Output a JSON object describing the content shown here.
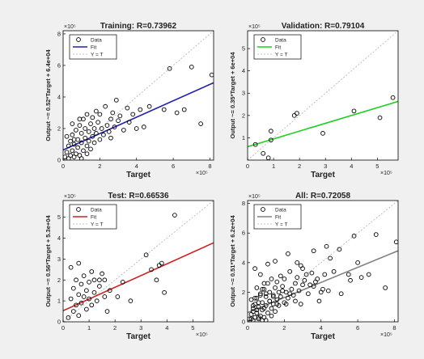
{
  "figure": {
    "background": "#f0f0f0",
    "axes_background": "#ffffff",
    "marker_style": "open-circle",
    "identity_line_color": "#b0b0b0"
  },
  "chart_data": [
    {
      "type": "scatter",
      "title": "Training: R=0.73962",
      "xlabel": "Target",
      "ylabel": "Output ~= 0.52*Target + 6.4e+04",
      "x_exponent": "×10⁵",
      "y_exponent": "×10⁵",
      "xlim": [
        0,
        8.2
      ],
      "ylim": [
        0,
        8.2
      ],
      "xticks": [
        0,
        2,
        4,
        6,
        8
      ],
      "yticks": [
        0,
        2,
        4,
        6,
        8
      ],
      "legend": {
        "placement": "top-left",
        "entries": [
          "Data",
          "Fit",
          "Y = T"
        ]
      },
      "fit": {
        "slope": 0.52,
        "intercept": 0.64,
        "color": "#2020b0"
      },
      "points": [
        [
          0.1,
          0.2
        ],
        [
          0.2,
          0.5
        ],
        [
          0.3,
          0.1
        ],
        [
          0.3,
          0.9
        ],
        [
          0.4,
          0.3
        ],
        [
          0.4,
          1.2
        ],
        [
          0.5,
          0.6
        ],
        [
          0.5,
          1.6
        ],
        [
          0.6,
          0.2
        ],
        [
          0.6,
          1.0
        ],
        [
          0.7,
          0.4
        ],
        [
          0.7,
          1.9
        ],
        [
          0.8,
          0.8
        ],
        [
          0.8,
          1.3
        ],
        [
          0.9,
          2.2
        ],
        [
          0.9,
          0.3
        ],
        [
          1.0,
          1.1
        ],
        [
          1.0,
          1.7
        ],
        [
          1.1,
          0.6
        ],
        [
          1.1,
          2.6
        ],
        [
          1.2,
          1.4
        ],
        [
          1.2,
          2.0
        ],
        [
          1.3,
          0.9
        ],
        [
          1.3,
          2.9
        ],
        [
          1.4,
          1.8
        ],
        [
          1.4,
          1.2
        ],
        [
          1.5,
          2.3
        ],
        [
          1.5,
          0.7
        ],
        [
          1.6,
          1.5
        ],
        [
          1.6,
          2.7
        ],
        [
          1.7,
          2.0
        ],
        [
          1.7,
          1.1
        ],
        [
          1.8,
          3.1
        ],
        [
          1.8,
          1.7
        ],
        [
          1.9,
          2.4
        ],
        [
          2.0,
          1.3
        ],
        [
          2.0,
          2.9
        ],
        [
          2.1,
          2.0
        ],
        [
          2.2,
          1.6
        ],
        [
          2.3,
          3.4
        ],
        [
          2.4,
          2.2
        ],
        [
          2.5,
          1.8
        ],
        [
          2.6,
          2.6
        ],
        [
          2.7,
          3.0
        ],
        [
          2.8,
          2.1
        ],
        [
          2.9,
          3.8
        ],
        [
          3.0,
          2.5
        ],
        [
          3.1,
          2.8
        ],
        [
          3.3,
          1.9
        ],
        [
          3.5,
          3.3
        ],
        [
          3.6,
          2.4
        ],
        [
          3.8,
          2.9
        ],
        [
          4.0,
          2.0
        ],
        [
          4.2,
          3.2
        ],
        [
          4.4,
          2.1
        ],
        [
          4.7,
          3.4
        ],
        [
          5.5,
          3.2
        ],
        [
          5.8,
          5.8
        ],
        [
          6.2,
          3.0
        ],
        [
          6.6,
          3.2
        ],
        [
          7.0,
          5.9
        ],
        [
          7.5,
          2.3
        ],
        [
          8.1,
          5.4
        ],
        [
          0.5,
          2.3
        ],
        [
          0.9,
          2.6
        ],
        [
          1.0,
          0.1
        ],
        [
          0.2,
          1.5
        ],
        [
          0.6,
          1.3
        ],
        [
          1.3,
          0.4
        ],
        [
          2.6,
          1.4
        ]
      ]
    },
    {
      "type": "scatter",
      "title": "Validation: R=0.79104",
      "xlabel": "Target",
      "ylabel": "Output ~= 0.35*Target + 6e+04",
      "x_exponent": "×10⁵",
      "y_exponent": "×10⁵",
      "xlim": [
        0,
        5.8
      ],
      "ylim": [
        0,
        5.8
      ],
      "xticks": [
        0,
        1,
        2,
        3,
        4,
        5
      ],
      "yticks": [
        1,
        2,
        3,
        4,
        5
      ],
      "legend": {
        "placement": "top-left",
        "entries": [
          "Data",
          "Fit",
          "Y = T"
        ]
      },
      "fit": {
        "slope": 0.35,
        "intercept": 0.6,
        "color": "#20d020"
      },
      "points": [
        [
          0.3,
          0.7
        ],
        [
          0.6,
          0.3
        ],
        [
          0.8,
          0.1
        ],
        [
          0.9,
          0.9
        ],
        [
          0.9,
          1.3
        ],
        [
          1.8,
          2.0
        ],
        [
          1.9,
          2.1
        ],
        [
          2.9,
          1.2
        ],
        [
          4.1,
          2.2
        ],
        [
          5.1,
          1.9
        ],
        [
          5.6,
          2.8
        ]
      ]
    },
    {
      "type": "scatter",
      "title": "Test: R=0.66536",
      "xlabel": "Target",
      "ylabel": "Output ~= 0.56*Target + 5.3e+04",
      "x_exponent": "×10⁵",
      "y_exponent": "×10⁵",
      "xlim": [
        0,
        5.8
      ],
      "ylim": [
        0,
        5.8
      ],
      "xticks": [
        0,
        1,
        2,
        3,
        4,
        5
      ],
      "yticks": [
        0,
        1,
        2,
        3,
        4,
        5
      ],
      "legend": {
        "placement": "top-left",
        "entries": [
          "Data",
          "Fit",
          "Y = T"
        ]
      },
      "fit": {
        "slope": 0.56,
        "intercept": 0.53,
        "color": "#d02020"
      },
      "points": [
        [
          0.2,
          0.2
        ],
        [
          0.3,
          1.1
        ],
        [
          0.4,
          0.5
        ],
        [
          0.4,
          1.6
        ],
        [
          0.5,
          0.8
        ],
        [
          0.5,
          2.0
        ],
        [
          0.6,
          1.3
        ],
        [
          0.6,
          0.3
        ],
        [
          0.7,
          1.8
        ],
        [
          0.7,
          0.9
        ],
        [
          0.8,
          1.2
        ],
        [
          0.8,
          2.2
        ],
        [
          0.9,
          0.6
        ],
        [
          0.9,
          1.5
        ],
        [
          1.0,
          1.9
        ],
        [
          1.0,
          1.1
        ],
        [
          1.1,
          0.8
        ],
        [
          1.1,
          2.4
        ],
        [
          1.2,
          1.4
        ],
        [
          1.2,
          2.0
        ],
        [
          1.3,
          1.0
        ],
        [
          1.4,
          1.7
        ],
        [
          1.5,
          2.3
        ],
        [
          1.6,
          1.2
        ],
        [
          1.6,
          2.0
        ],
        [
          1.7,
          0.5
        ],
        [
          1.8,
          1.5
        ],
        [
          2.1,
          1.2
        ],
        [
          2.3,
          1.9
        ],
        [
          2.6,
          1.0
        ],
        [
          3.2,
          3.2
        ],
        [
          3.4,
          2.5
        ],
        [
          3.6,
          2.0
        ],
        [
          3.7,
          2.7
        ],
        [
          3.8,
          2.8
        ],
        [
          3.9,
          1.4
        ],
        [
          4.3,
          5.1
        ],
        [
          0.3,
          2.6
        ],
        [
          0.6,
          2.8
        ],
        [
          1.4,
          2.0
        ]
      ]
    },
    {
      "type": "scatter",
      "title": "All: R=0.72058",
      "xlabel": "Target",
      "ylabel": "Output ~= 0.51*Target + 6.2e+04",
      "x_exponent": "×10⁵",
      "y_exponent": "×10⁵",
      "xlim": [
        0,
        8.2
      ],
      "ylim": [
        0,
        8.2
      ],
      "xticks": [
        0,
        2,
        4,
        6,
        8
      ],
      "yticks": [
        0,
        2,
        4,
        6,
        8
      ],
      "legend": {
        "placement": "top-left",
        "entries": [
          "Data",
          "Fit",
          "Y = T"
        ]
      },
      "fit": {
        "slope": 0.51,
        "intercept": 0.62,
        "color": "#808080"
      },
      "points": [
        [
          0.1,
          0.2
        ],
        [
          0.2,
          0.5
        ],
        [
          0.3,
          0.1
        ],
        [
          0.3,
          0.9
        ],
        [
          0.4,
          0.3
        ],
        [
          0.4,
          1.2
        ],
        [
          0.5,
          0.6
        ],
        [
          0.5,
          1.6
        ],
        [
          0.6,
          0.2
        ],
        [
          0.6,
          1.0
        ],
        [
          0.7,
          0.4
        ],
        [
          0.7,
          1.9
        ],
        [
          0.8,
          0.8
        ],
        [
          0.8,
          1.3
        ],
        [
          0.9,
          2.2
        ],
        [
          0.9,
          0.3
        ],
        [
          1.0,
          1.1
        ],
        [
          1.0,
          1.7
        ],
        [
          1.1,
          0.6
        ],
        [
          1.1,
          2.6
        ],
        [
          1.2,
          1.4
        ],
        [
          1.2,
          2.0
        ],
        [
          1.3,
          0.9
        ],
        [
          1.3,
          2.9
        ],
        [
          1.4,
          1.8
        ],
        [
          1.4,
          1.2
        ],
        [
          1.5,
          2.3
        ],
        [
          1.5,
          0.7
        ],
        [
          1.6,
          1.5
        ],
        [
          1.6,
          2.7
        ],
        [
          1.7,
          2.0
        ],
        [
          1.7,
          1.1
        ],
        [
          1.8,
          3.1
        ],
        [
          1.8,
          1.7
        ],
        [
          1.9,
          2.4
        ],
        [
          2.0,
          1.3
        ],
        [
          2.0,
          2.9
        ],
        [
          2.1,
          2.0
        ],
        [
          2.2,
          1.6
        ],
        [
          2.3,
          3.4
        ],
        [
          2.4,
          2.2
        ],
        [
          2.5,
          1.8
        ],
        [
          2.6,
          2.6
        ],
        [
          2.7,
          3.0
        ],
        [
          2.8,
          2.1
        ],
        [
          2.9,
          3.8
        ],
        [
          3.0,
          2.5
        ],
        [
          3.1,
          2.8
        ],
        [
          3.3,
          1.9
        ],
        [
          3.5,
          3.3
        ],
        [
          3.6,
          2.4
        ],
        [
          3.8,
          2.9
        ],
        [
          4.0,
          2.0
        ],
        [
          4.2,
          3.2
        ],
        [
          4.4,
          2.1
        ],
        [
          4.7,
          3.4
        ],
        [
          5.5,
          3.2
        ],
        [
          5.8,
          5.8
        ],
        [
          6.2,
          3.0
        ],
        [
          6.6,
          3.2
        ],
        [
          7.0,
          5.9
        ],
        [
          7.5,
          2.3
        ],
        [
          8.1,
          5.4
        ],
        [
          0.5,
          2.3
        ],
        [
          0.9,
          2.6
        ],
        [
          1.0,
          0.1
        ],
        [
          0.2,
          1.5
        ],
        [
          0.6,
          1.3
        ],
        [
          1.3,
          0.4
        ],
        [
          2.6,
          1.4
        ],
        [
          0.3,
          0.7
        ],
        [
          0.6,
          0.3
        ],
        [
          0.8,
          0.1
        ],
        [
          0.9,
          0.9
        ],
        [
          1.9,
          2.1
        ],
        [
          2.9,
          1.2
        ],
        [
          4.1,
          2.2
        ],
        [
          5.1,
          1.9
        ],
        [
          5.6,
          2.8
        ],
        [
          0.2,
          0.2
        ],
        [
          0.3,
          1.1
        ],
        [
          0.4,
          1.6
        ],
        [
          0.5,
          0.8
        ],
        [
          0.7,
          1.8
        ],
        [
          0.8,
          2.2
        ],
        [
          1.0,
          1.9
        ],
        [
          1.2,
          1.4
        ],
        [
          1.4,
          1.7
        ],
        [
          1.6,
          1.2
        ],
        [
          2.1,
          1.2
        ],
        [
          2.3,
          1.9
        ],
        [
          3.2,
          3.2
        ],
        [
          3.4,
          2.5
        ],
        [
          3.7,
          2.7
        ],
        [
          3.9,
          1.4
        ],
        [
          4.3,
          5.1
        ],
        [
          4.5,
          4.3
        ],
        [
          5.0,
          4.9
        ],
        [
          6.0,
          4.0
        ],
        [
          0.4,
          3.6
        ],
        [
          0.7,
          3.2
        ],
        [
          1.1,
          3.9
        ],
        [
          1.5,
          4.1
        ],
        [
          2.2,
          4.6
        ],
        [
          2.7,
          4.0
        ],
        [
          3.0,
          3.6
        ],
        [
          3.6,
          4.8
        ]
      ]
    }
  ]
}
